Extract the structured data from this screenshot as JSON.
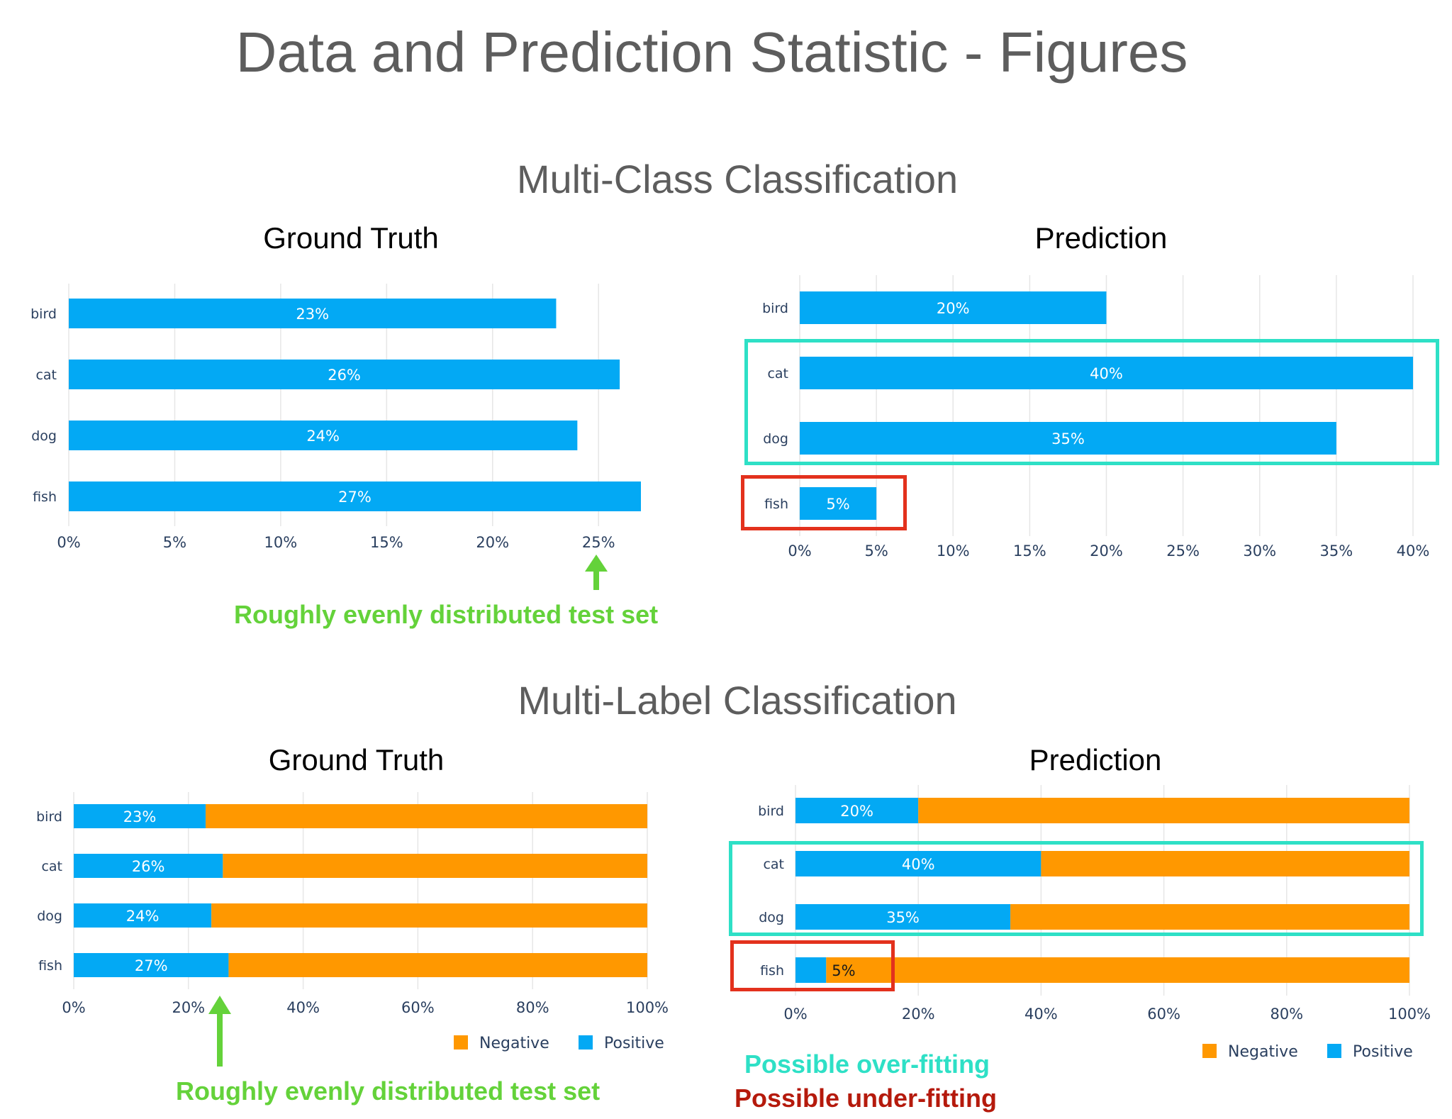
{
  "title": "Data and Prediction Statistic - Figures",
  "sections": {
    "multi_class": "Multi-Class Classification",
    "multi_label": "Multi-Label Classification"
  },
  "colors": {
    "positive": "#03a9f4",
    "negative": "#ff9800",
    "grid": "#e6e6e6",
    "tick_text": "#2a3f5f",
    "overfit_box": "#2ee0c6",
    "underfit_box": "#e3311d",
    "annotation_green": "#64d23a",
    "annotation_red": "#b51a0c"
  },
  "annotations": {
    "even_distribution_top": "Roughly evenly distributed test set",
    "even_distribution_bottom": "Roughly evenly distributed test set",
    "over_fitting": "Possible over-fitting",
    "under_fitting": "Possible under-fitting"
  },
  "chart_data": [
    {
      "id": "mc-gt",
      "type": "bar",
      "orientation": "horizontal",
      "title": "Ground Truth",
      "categories": [
        "bird",
        "cat",
        "dog",
        "fish"
      ],
      "series": [
        {
          "name": "",
          "values": [
            23,
            26,
            24,
            27
          ],
          "labels": [
            "23%",
            "26%",
            "24%",
            "27%"
          ]
        }
      ],
      "xlim": [
        0,
        27
      ],
      "xticks": [
        0,
        5,
        10,
        15,
        20,
        25
      ],
      "xtick_labels": [
        "0%",
        "5%",
        "10%",
        "15%",
        "20%",
        "25%"
      ],
      "grid": true
    },
    {
      "id": "mc-pred",
      "type": "bar",
      "orientation": "horizontal",
      "title": "Prediction",
      "categories": [
        "bird",
        "cat",
        "dog",
        "fish"
      ],
      "series": [
        {
          "name": "",
          "values": [
            20,
            40,
            35,
            5
          ],
          "labels": [
            "20%",
            "40%",
            "35%",
            "5%"
          ]
        }
      ],
      "xlim": [
        0,
        40
      ],
      "xticks": [
        0,
        5,
        10,
        15,
        20,
        25,
        30,
        35,
        40
      ],
      "xtick_labels": [
        "0%",
        "5%",
        "10%",
        "15%",
        "20%",
        "25%",
        "30%",
        "35%",
        "40%"
      ],
      "grid": true
    },
    {
      "id": "ml-gt",
      "type": "bar",
      "orientation": "horizontal",
      "stacked": true,
      "title": "Ground Truth",
      "categories": [
        "bird",
        "cat",
        "dog",
        "fish"
      ],
      "series": [
        {
          "name": "Positive",
          "values": [
            23,
            26,
            24,
            27
          ],
          "labels": [
            "23%",
            "26%",
            "24%",
            "27%"
          ]
        },
        {
          "name": "Negative",
          "values": [
            77,
            74,
            76,
            73
          ]
        }
      ],
      "xlim": [
        0,
        100
      ],
      "xticks": [
        0,
        20,
        40,
        60,
        80,
        100
      ],
      "xtick_labels": [
        "0%",
        "20%",
        "40%",
        "60%",
        "80%",
        "100%"
      ],
      "legend": [
        "Negative",
        "Positive"
      ],
      "legend_position": "bottom-right",
      "grid": true
    },
    {
      "id": "ml-pred",
      "type": "bar",
      "orientation": "horizontal",
      "stacked": true,
      "title": "Prediction",
      "categories": [
        "bird",
        "cat",
        "dog",
        "fish"
      ],
      "series": [
        {
          "name": "Positive",
          "values": [
            20,
            40,
            35,
            5
          ],
          "labels": [
            "20%",
            "40%",
            "35%",
            "5%"
          ]
        },
        {
          "name": "Negative",
          "values": [
            80,
            60,
            65,
            95
          ]
        }
      ],
      "xlim": [
        0,
        100
      ],
      "xticks": [
        0,
        20,
        40,
        60,
        80,
        100
      ],
      "xtick_labels": [
        "0%",
        "20%",
        "40%",
        "60%",
        "80%",
        "100%"
      ],
      "legend": [
        "Negative",
        "Positive"
      ],
      "legend_position": "bottom-right",
      "grid": true
    }
  ]
}
